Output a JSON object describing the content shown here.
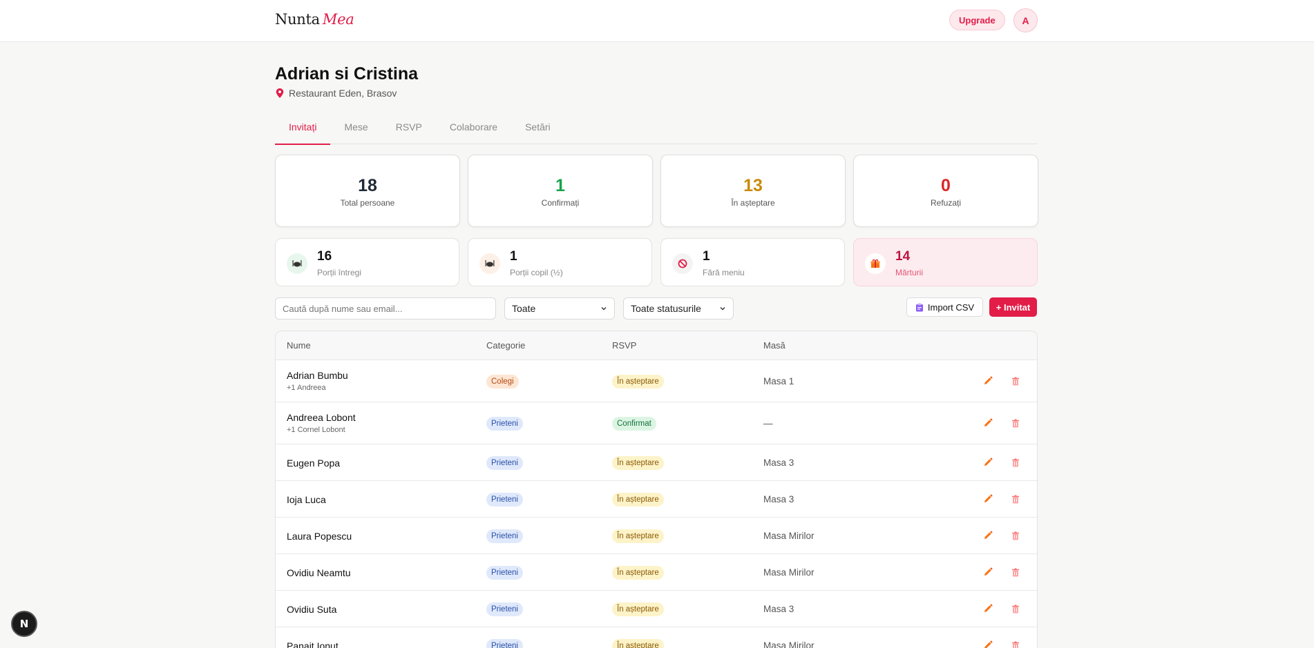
{
  "header": {
    "logo_main": "Nunta",
    "logo_accent": "Mea",
    "upgrade_label": "Upgrade",
    "avatar_initial": "A"
  },
  "event": {
    "title": "Adrian si Cristina",
    "location": "Restaurant Eden, Brasov"
  },
  "tabs": [
    {
      "label": "Invitați",
      "active": true
    },
    {
      "label": "Mese",
      "active": false
    },
    {
      "label": "RSVP",
      "active": false
    },
    {
      "label": "Colaborare",
      "active": false
    },
    {
      "label": "Setări",
      "active": false
    }
  ],
  "stats": [
    {
      "value": "18",
      "label": "Total persoane",
      "color": "#1f2937"
    },
    {
      "value": "1",
      "label": "Confirmați",
      "color": "#16a34a"
    },
    {
      "value": "13",
      "label": "În așteptare",
      "color": "#ca8a04"
    },
    {
      "value": "0",
      "label": "Refuzați",
      "color": "#dc2626"
    }
  ],
  "portions": [
    {
      "value": "16",
      "label": "Porții întregi",
      "icon": "plate-icon"
    },
    {
      "value": "1",
      "label": "Porții copil (½)",
      "icon": "plate-icon"
    },
    {
      "value": "1",
      "label": "Fără meniu",
      "icon": "no-entry-icon"
    },
    {
      "value": "14",
      "label": "Mărturii",
      "icon": "gift-icon"
    }
  ],
  "filters": {
    "search_placeholder": "Caută după nume sau email...",
    "category_value": "Toate",
    "status_value": "Toate statusurile"
  },
  "actions": {
    "import_label": "Import CSV",
    "add_label": "+ Invitat"
  },
  "table": {
    "headers": {
      "name": "Nume",
      "category": "Categorie",
      "rsvp": "RSVP",
      "table": "Masă"
    },
    "rows": [
      {
        "name": "Adrian Bumbu",
        "plus": "+1 Andreea",
        "category": "Colegi",
        "rsvp": "În așteptare",
        "table": "Masa 1"
      },
      {
        "name": "Andreea Lobont",
        "plus": "+1 Cornel Lobont",
        "category": "Prieteni",
        "rsvp": "Confirmat",
        "table": "—"
      },
      {
        "name": "Eugen Popa",
        "plus": "",
        "category": "Prieteni",
        "rsvp": "În așteptare",
        "table": "Masa 3"
      },
      {
        "name": "Ioja Luca",
        "plus": "",
        "category": "Prieteni",
        "rsvp": "În așteptare",
        "table": "Masa 3"
      },
      {
        "name": "Laura Popescu",
        "plus": "",
        "category": "Prieteni",
        "rsvp": "În așteptare",
        "table": "Masa Mirilor"
      },
      {
        "name": "Ovidiu Neamtu",
        "plus": "",
        "category": "Prieteni",
        "rsvp": "În așteptare",
        "table": "Masa Mirilor"
      },
      {
        "name": "Ovidiu Suta",
        "plus": "",
        "category": "Prieteni",
        "rsvp": "În așteptare",
        "table": "Masa 3"
      },
      {
        "name": "Panait Ionut",
        "plus": "",
        "category": "Prieteni",
        "rsvp": "În așteptare",
        "table": "Masa Mirilor"
      }
    ]
  },
  "fab_label": "N"
}
